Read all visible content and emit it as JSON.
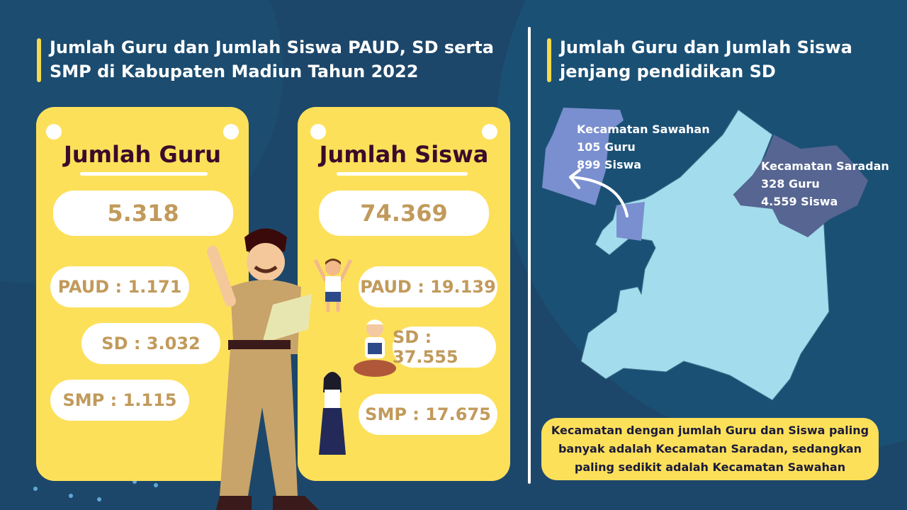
{
  "left": {
    "title": "Jumlah Guru dan Jumlah Siswa PAUD, SD serta SMP di Kabupaten Madiun Tahun 2022",
    "guru": {
      "heading": "Jumlah Guru",
      "total": "5.318",
      "paud": "PAUD : 1.171",
      "sd": "SD : 3.032",
      "smp": "SMP : 1.115"
    },
    "siswa": {
      "heading": "Jumlah Siswa",
      "total": "74.369",
      "paud": "PAUD : 19.139",
      "sd": "SD : 37.555",
      "smp": "SMP : 17.675"
    }
  },
  "right": {
    "title": "Jumlah Guru dan Jumlah Siswa jenjang pendidikan SD",
    "sawahan": {
      "name": "Kecamatan Sawahan",
      "guru": "105 Guru",
      "siswa": "899 Siswa"
    },
    "saradan": {
      "name": "Kecamatan Saradan",
      "guru": "328 Guru",
      "siswa": "4.559 Siswa"
    },
    "note": "Kecamatan dengan jumlah Guru dan Siswa paling banyak adalah Kecamatan Saradan, sedangkan paling sedikit adalah Kecamatan Sawahan"
  },
  "colors": {
    "background": "#1d476a",
    "card": "#fde05a",
    "map": "#a3dcec",
    "sawahan": "#7a8fcf",
    "saradan": "#566591",
    "number": "#c19a5b"
  }
}
